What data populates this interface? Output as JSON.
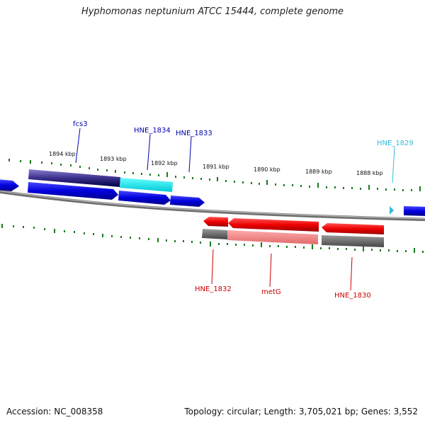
{
  "title": "Hyphomonas neptunium ATCC 15444, complete genome",
  "footer": {
    "accession": "Accession: NC_008358",
    "summary": "Topology: circular; Length: 3,705,021 bp; Genes: 3,552"
  },
  "scale": {
    "labels": [
      "1894 kbp",
      "1893 kbp",
      "1892 kbp",
      "1891 kbp",
      "1890 kbp",
      "1889 kbp",
      "1888 kbp"
    ]
  },
  "genes": [
    {
      "name": "fcs3",
      "color": "#0000aa"
    },
    {
      "name": "HNE_1834",
      "color": "#0000aa"
    },
    {
      "name": "HNE_1833",
      "color": "#0000aa"
    },
    {
      "name": "HNE_1829",
      "color": "#33bbdd"
    },
    {
      "name": "HNE_1832",
      "color": "#cc0000"
    },
    {
      "name": "metG",
      "color": "#cc0000"
    },
    {
      "name": "HNE_1830",
      "color": "#cc0000"
    }
  ],
  "colors": {
    "forward_cds": "#0000ee",
    "reverse_cds": "#ee0000",
    "backbone": "#888888",
    "ticks": "#1a7a1a"
  }
}
